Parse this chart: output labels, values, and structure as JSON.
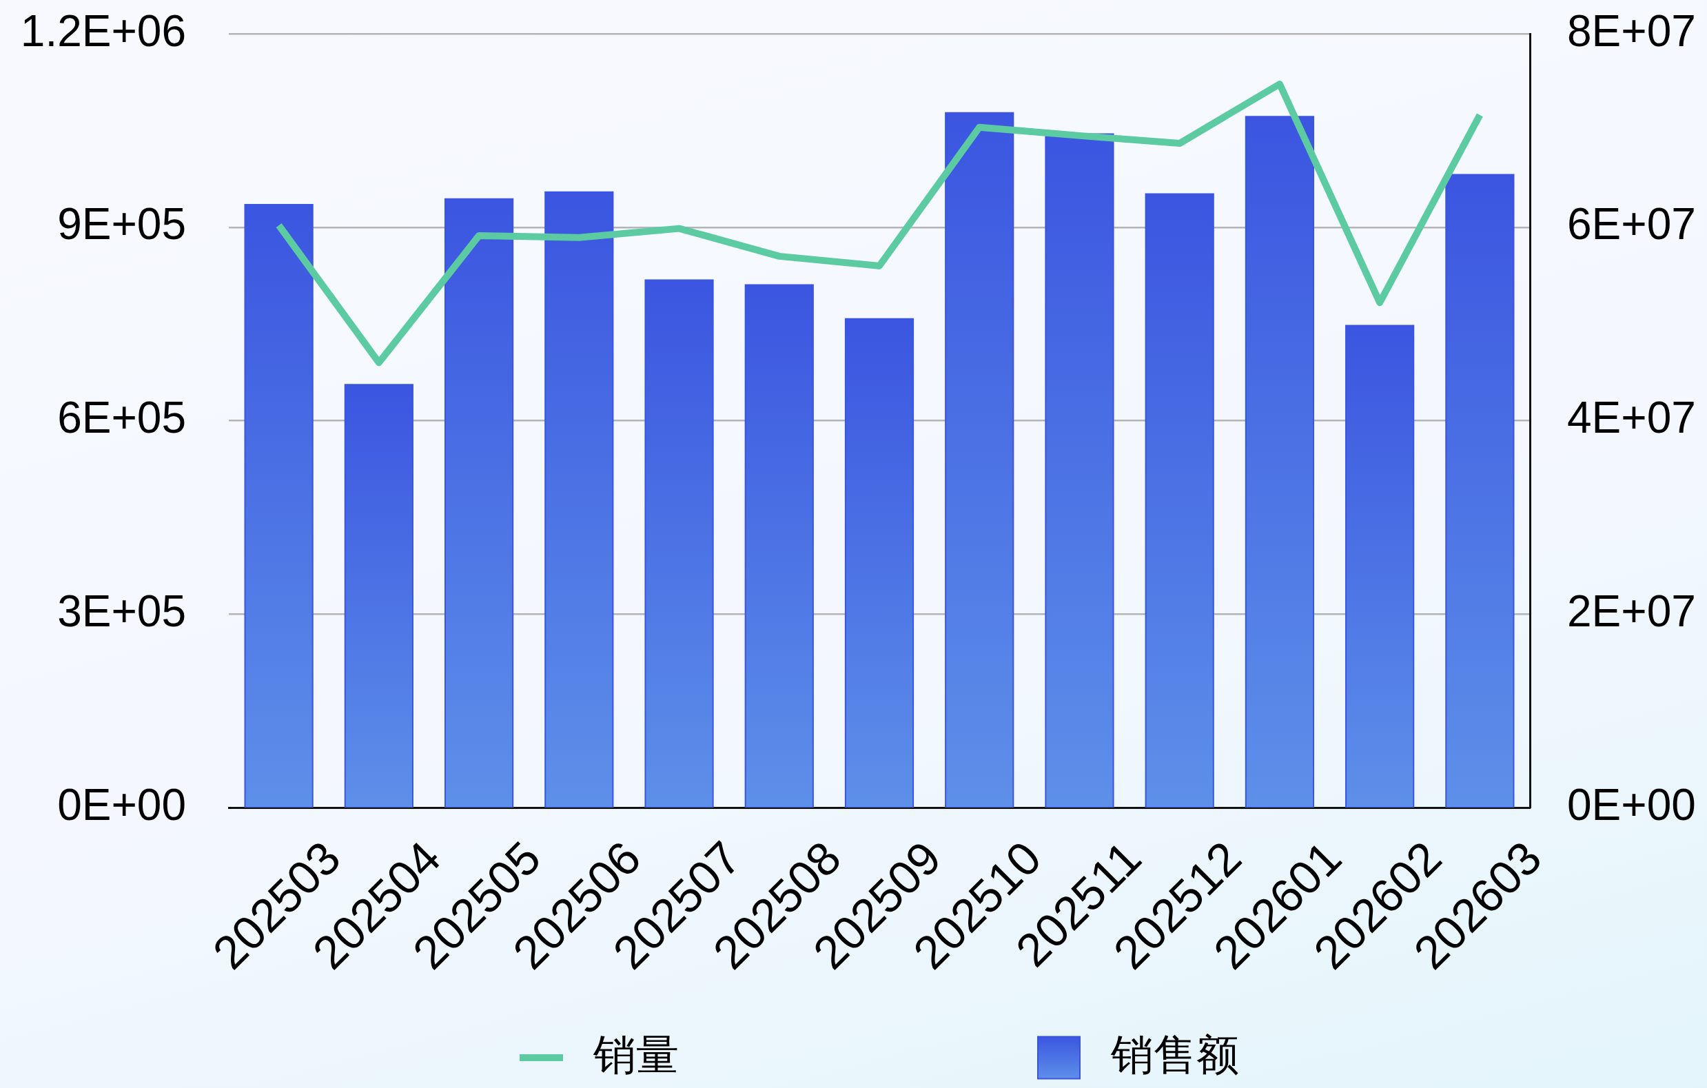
{
  "chart_data": {
    "type": "bar",
    "categories": [
      "202503",
      "202504",
      "202505",
      "202506",
      "202507",
      "202508",
      "202509",
      "202510",
      "202511",
      "202512",
      "202601",
      "202602",
      "202603"
    ],
    "series": [
      {
        "name": "销量",
        "type": "line",
        "color": "#5ccba1",
        "values": [
          903000,
          690000,
          887000,
          884000,
          898000,
          855000,
          840000,
          1055000,
          1042000,
          1030000,
          1122000,
          783000,
          1074000
        ]
      },
      {
        "name": "销售额",
        "axis": "y2",
        "color": "#3b55e0",
        "values": [
          62400000,
          43800000,
          63000000,
          63700000,
          54600000,
          54100000,
          50600000,
          71900000,
          69700000,
          63500000,
          71500000,
          49900000,
          65500000
        ]
      }
    ],
    "ylim": [
      0,
      1200000
    ],
    "yticks": [
      {
        "value": 0,
        "label": "0E+00"
      },
      {
        "value": 300000,
        "label": "3E+05"
      },
      {
        "value": 600000,
        "label": "6E+05"
      },
      {
        "value": 900000,
        "label": "9E+05"
      },
      {
        "value": 1200000,
        "label": "1.2E+06"
      }
    ],
    "y2lim": [
      0,
      80000000
    ],
    "y2ticks": [
      {
        "value": 0,
        "label": "0E+00"
      },
      {
        "value": 20000000,
        "label": "2E+07"
      },
      {
        "value": 40000000,
        "label": "4E+07"
      },
      {
        "value": 60000000,
        "label": "6E+07"
      },
      {
        "value": 80000000,
        "label": "8E+07"
      }
    ],
    "grid": "y",
    "legend": "bottom",
    "marker": "none"
  }
}
